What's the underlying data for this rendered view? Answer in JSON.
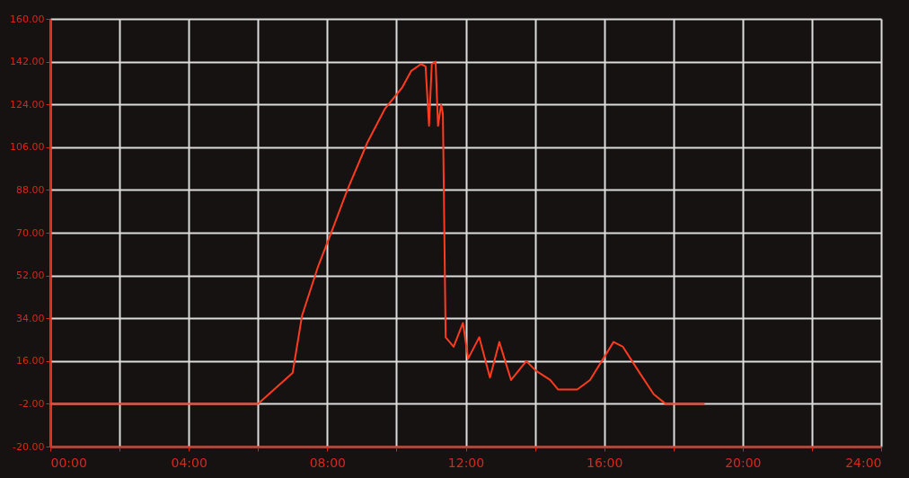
{
  "chart_data": {
    "type": "line",
    "x": [
      0,
      6.0,
      7.0,
      7.27,
      7.74,
      8.14,
      8.58,
      9.16,
      9.66,
      10.16,
      10.42,
      10.71,
      10.84,
      10.94,
      11.02,
      11.13,
      11.2,
      11.29,
      11.34,
      11.42,
      11.65,
      11.92,
      12.07,
      12.39,
      12.7,
      12.97,
      13.31,
      13.75,
      14.02,
      14.44,
      14.67,
      15.22,
      15.59,
      16.27,
      16.54,
      16.98,
      17.43,
      17.77,
      18.9
    ],
    "series": [
      {
        "color": "#ff3b1f",
        "values": [
          -2,
          -2,
          11,
          35,
          56,
          71,
          88,
          108,
          122,
          131,
          138,
          141,
          140,
          115,
          141,
          142,
          115,
          124,
          120,
          26,
          22,
          32,
          17,
          26,
          9,
          24,
          8,
          16,
          12,
          8,
          4,
          4,
          8,
          24,
          22,
          12,
          2,
          -2,
          -2
        ]
      }
    ],
    "xlim": [
      0,
      24
    ],
    "ylim": [
      -20,
      160
    ],
    "xticks": [
      {
        "value": 0,
        "label": "00:00"
      },
      {
        "value": 2,
        "label": null
      },
      {
        "value": 4,
        "label": "04:00"
      },
      {
        "value": 6,
        "label": null
      },
      {
        "value": 8,
        "label": "08:00"
      },
      {
        "value": 10,
        "label": null
      },
      {
        "value": 12,
        "label": "12:00"
      },
      {
        "value": 14,
        "label": null
      },
      {
        "value": 16,
        "label": "16:00"
      },
      {
        "value": 18,
        "label": null
      },
      {
        "value": 20,
        "label": "20:00"
      },
      {
        "value": 22,
        "label": null
      },
      {
        "value": 24,
        "label": "24:00"
      }
    ],
    "yticks": [
      {
        "value": -20,
        "label": "-20.00"
      },
      {
        "value": -2,
        "label": "-2.00"
      },
      {
        "value": 16,
        "label": "16.00"
      },
      {
        "value": 34,
        "label": "34.00"
      },
      {
        "value": 52,
        "label": "52.00"
      },
      {
        "value": 70,
        "label": "70.00"
      },
      {
        "value": 88,
        "label": "88.00"
      },
      {
        "value": 106,
        "label": "106.00"
      },
      {
        "value": 124,
        "label": "124.00"
      },
      {
        "value": 142,
        "label": "142.00"
      },
      {
        "value": 160,
        "label": "160.00"
      }
    ],
    "grid": true,
    "marker": "none",
    "line_style": "solid"
  }
}
